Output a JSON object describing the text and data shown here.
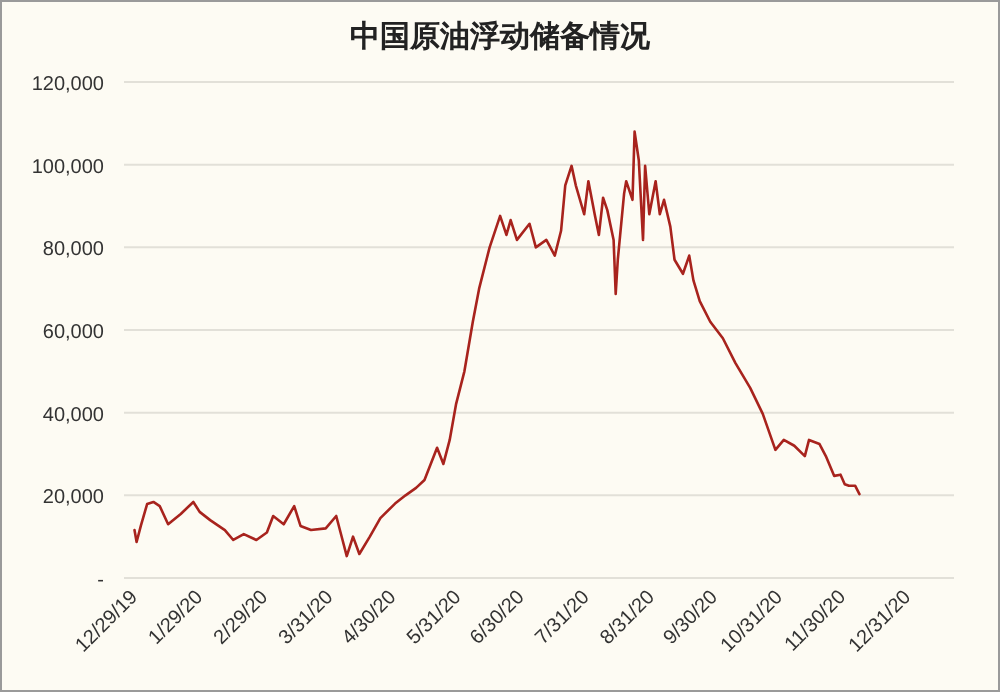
{
  "chart_data": {
    "type": "line",
    "title": "中国原油浮动储备情况",
    "x": [
      "2019-12-30",
      "2019-12-31",
      "2020-01-02",
      "2020-01-05",
      "2020-01-08",
      "2020-01-11",
      "2020-01-15",
      "2020-01-21",
      "2020-01-27",
      "2020-01-30",
      "2020-02-04",
      "2020-02-11",
      "2020-02-15",
      "2020-02-20",
      "2020-02-26",
      "2020-03-02",
      "2020-03-05",
      "2020-03-10",
      "2020-03-15",
      "2020-03-18",
      "2020-03-23",
      "2020-03-30",
      "2020-04-04",
      "2020-04-07",
      "2020-04-09",
      "2020-04-12",
      "2020-04-15",
      "2020-04-20",
      "2020-04-25",
      "2020-05-02",
      "2020-05-07",
      "2020-05-12",
      "2020-05-16",
      "2020-05-22",
      "2020-05-25",
      "2020-05-28",
      "2020-05-31",
      "2020-06-04",
      "2020-06-08",
      "2020-06-11",
      "2020-06-16",
      "2020-06-21",
      "2020-06-24",
      "2020-06-26",
      "2020-06-29",
      "2020-07-05",
      "2020-07-08",
      "2020-07-13",
      "2020-07-17",
      "2020-07-20",
      "2020-07-22",
      "2020-07-25",
      "2020-07-27",
      "2020-07-31",
      "2020-08-02",
      "2020-08-05",
      "2020-08-07",
      "2020-08-09",
      "2020-08-11",
      "2020-08-14",
      "2020-08-15",
      "2020-08-16",
      "2020-08-19",
      "2020-08-20",
      "2020-08-23",
      "2020-08-24",
      "2020-08-26",
      "2020-08-28",
      "2020-08-29",
      "2020-08-31",
      "2020-09-03",
      "2020-09-05",
      "2020-09-07",
      "2020-09-10",
      "2020-09-12",
      "2020-09-16",
      "2020-09-19",
      "2020-09-21",
      "2020-09-24",
      "2020-09-29",
      "2020-10-05",
      "2020-10-11",
      "2020-10-18",
      "2020-10-24",
      "2020-10-30",
      "2020-11-03",
      "2020-11-08",
      "2020-11-13",
      "2020-11-15",
      "2020-11-20",
      "2020-11-23",
      "2020-11-27",
      "2020-11-30",
      "2020-12-02",
      "2020-12-04",
      "2020-12-07",
      "2020-12-09"
    ],
    "series": [
      {
        "color": "#a8231d",
        "values": [
          11600,
          8700,
          12600,
          17900,
          18400,
          17400,
          13000,
          15500,
          18400,
          16000,
          14000,
          11600,
          9200,
          10600,
          9200,
          11000,
          15000,
          13000,
          17400,
          12600,
          11600,
          12000,
          15000,
          9200,
          5300,
          10000,
          5800,
          10000,
          14500,
          18000,
          20000,
          21800,
          23700,
          31500,
          27600,
          33400,
          42000,
          50000,
          62000,
          70000,
          80000,
          87600,
          83000,
          86600,
          81800,
          85700,
          80000,
          81800,
          78000,
          84000,
          95000,
          99700,
          95000,
          88000,
          96000,
          88000,
          83000,
          92000,
          89000,
          81800,
          68700,
          77000,
          93000,
          96000,
          91500,
          108000,
          101000,
          81800,
          99700,
          88000,
          96000,
          88000,
          91500,
          85000,
          77000,
          73600,
          78000,
          72000,
          67000,
          62000,
          58000,
          52000,
          46000,
          39700,
          31000,
          33400,
          32000,
          29500,
          33400,
          32400,
          29500,
          24700,
          25000,
          22700,
          22300,
          22300,
          20300
        ]
      }
    ],
    "xlim": [
      "2019-12-25",
      "2021-01-23"
    ],
    "xticks": [
      {
        "value": "2019-12-29",
        "label": "12/29/19"
      },
      {
        "value": "2020-01-29",
        "label": "1/29/20"
      },
      {
        "value": "2020-02-29",
        "label": "2/29/20"
      },
      {
        "value": "2020-03-31",
        "label": "3/31/20"
      },
      {
        "value": "2020-04-30",
        "label": "4/30/20"
      },
      {
        "value": "2020-05-31",
        "label": "5/31/20"
      },
      {
        "value": "2020-06-30",
        "label": "6/30/20"
      },
      {
        "value": "2020-07-31",
        "label": "7/31/20"
      },
      {
        "value": "2020-08-31",
        "label": "8/31/20"
      },
      {
        "value": "2020-09-30",
        "label": "9/30/20"
      },
      {
        "value": "2020-10-31",
        "label": "10/31/20"
      },
      {
        "value": "2020-11-30",
        "label": "11/30/20"
      },
      {
        "value": "2020-12-31",
        "label": "12/31/20"
      }
    ],
    "ylim": [
      0,
      120000
    ],
    "yticks": [
      {
        "value": 0,
        "label": "-"
      },
      {
        "value": 20000,
        "label": "20,000"
      },
      {
        "value": 40000,
        "label": "40,000"
      },
      {
        "value": 60000,
        "label": "60,000"
      },
      {
        "value": 80000,
        "label": "80,000"
      },
      {
        "value": 100000,
        "label": "100,000"
      },
      {
        "value": 120000,
        "label": "120,000"
      }
    ],
    "grid": "y"
  }
}
